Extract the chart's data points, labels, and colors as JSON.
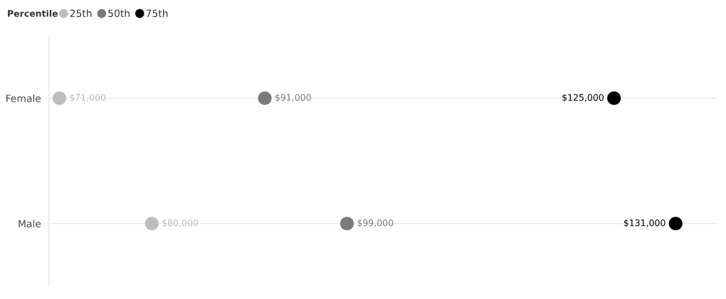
{
  "chart_data": {
    "type": "scatter",
    "orientation": "horizontal",
    "legend_title": "Percentile",
    "legend": "top left",
    "categories": [
      "Female",
      "Male"
    ],
    "series": [
      {
        "name": "25th",
        "color": "#bdbdbd",
        "values": [
          71000,
          80000
        ],
        "value_labels": [
          "$71,000",
          "$80,000"
        ]
      },
      {
        "name": "50th",
        "color": "#7a7a7a",
        "values": [
          91000,
          99000
        ],
        "value_labels": [
          "$91,000",
          "$99,000"
        ]
      },
      {
        "name": "75th",
        "color": "#000000",
        "values": [
          125000,
          131000
        ],
        "value_labels": [
          "$125,000",
          "$131,000"
        ]
      }
    ],
    "xlim": [
      70000,
      135000
    ],
    "grid": "y",
    "tick_labels": "y",
    "marker": "circle"
  }
}
